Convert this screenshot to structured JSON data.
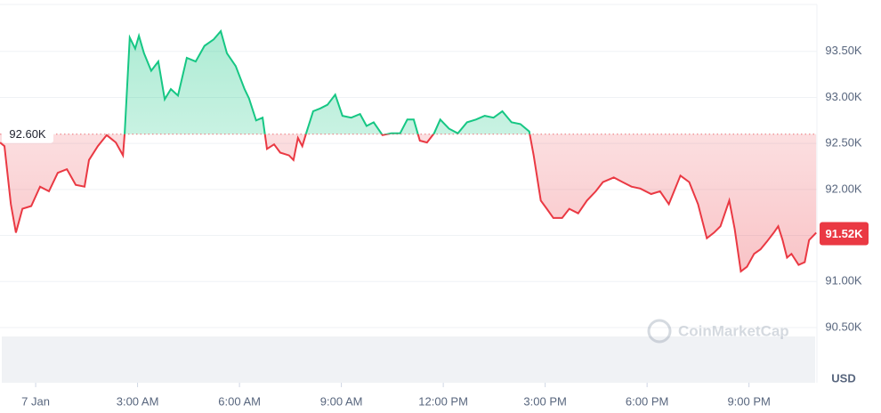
{
  "chart_data": {
    "type": "line",
    "x": [
      -1.05,
      -0.92,
      -0.73,
      -0.58,
      -0.39,
      -0.13,
      0.13,
      0.39,
      0.65,
      0.92,
      1.18,
      1.44,
      1.57,
      1.83,
      2.09,
      2.36,
      2.57,
      2.62,
      2.77,
      2.93,
      3.04,
      3.19,
      3.4,
      3.61,
      3.8,
      3.98,
      4.19,
      4.45,
      4.71,
      4.97,
      5.24,
      5.45,
      5.63,
      5.89,
      6.15,
      6.28,
      6.49,
      6.68,
      6.81,
      7.02,
      7.2,
      7.46,
      7.59,
      7.72,
      7.85,
      7.98,
      8.17,
      8.38,
      8.59,
      8.82,
      9.03,
      9.29,
      9.55,
      9.74,
      9.95,
      10.21,
      10.47,
      10.73,
      10.94,
      11.13,
      11.31,
      11.52,
      11.73,
      11.91,
      12.17,
      12.43,
      12.7,
      12.96,
      13.22,
      13.48,
      13.74,
      14.01,
      14.27,
      14.53,
      14.66,
      14.87,
      15.05,
      15.24,
      15.5,
      15.71,
      15.97,
      16.23,
      16.49,
      16.7,
      17.02,
      17.28,
      17.54,
      17.8,
      18.12,
      18.38,
      18.64,
      18.98,
      19.24,
      19.5,
      19.76,
      19.97,
      20.16,
      20.42,
      20.58,
      20.76,
      20.94,
      21.15,
      21.34,
      21.52,
      21.73,
      21.86,
      21.99,
      22.12,
      22.25,
      22.46,
      22.64,
      22.77,
      22.98
    ],
    "values": [
      92510,
      92470,
      91840,
      91530,
      91790,
      91820,
      92030,
      91980,
      92180,
      92220,
      92050,
      92030,
      92320,
      92470,
      92590,
      92510,
      92370,
      92610,
      93650,
      93530,
      93670,
      93480,
      93290,
      93390,
      92980,
      93090,
      93020,
      93430,
      93390,
      93560,
      93630,
      93720,
      93480,
      93340,
      93090,
      92990,
      92750,
      92780,
      92440,
      92490,
      92400,
      92370,
      92320,
      92560,
      92470,
      92630,
      92850,
      92880,
      92920,
      93030,
      92800,
      92780,
      92820,
      92690,
      92730,
      92590,
      92610,
      92610,
      92760,
      92760,
      92530,
      92510,
      92610,
      92760,
      92660,
      92610,
      92730,
      92760,
      92800,
      92780,
      92850,
      92730,
      92710,
      92630,
      92370,
      91880,
      91790,
      91690,
      91690,
      91790,
      91740,
      91880,
      91980,
      92080,
      92130,
      92080,
      92030,
      92010,
      91950,
      91980,
      91840,
      92150,
      92080,
      91840,
      91470,
      91530,
      91600,
      91880,
      91570,
      91110,
      91160,
      91300,
      91350,
      91430,
      91530,
      91600,
      91450,
      91260,
      91300,
      91180,
      91210,
      91450,
      91530
    ],
    "colors": {
      "above": "#16c784",
      "below": "#ea3943"
    },
    "baseline": {
      "value": 92600,
      "label": "92.60K"
    },
    "last_price": {
      "value": 91520,
      "label": "91.52K"
    },
    "xlim": [
      -1.05,
      23
    ],
    "xticks": [
      {
        "value": 0,
        "label": "7 Jan"
      },
      {
        "value": 3,
        "label": "3:00 AM"
      },
      {
        "value": 6,
        "label": "6:00 AM"
      },
      {
        "value": 9,
        "label": "9:00 AM"
      },
      {
        "value": 12,
        "label": "12:00 PM"
      },
      {
        "value": 15,
        "label": "3:00 PM"
      },
      {
        "value": 18,
        "label": "6:00 PM"
      },
      {
        "value": 21,
        "label": "9:00 PM"
      }
    ],
    "ylim": [
      89900,
      94010
    ],
    "yticks": [
      {
        "value": 90500,
        "label": "90.50K"
      },
      {
        "value": 91000,
        "label": "91.00K"
      },
      {
        "value": 91500,
        "label": "91.50K"
      },
      {
        "value": 92000,
        "label": "92.00K"
      },
      {
        "value": 92500,
        "label": "92.50K"
      },
      {
        "value": 93000,
        "label": "93.00K"
      },
      {
        "value": 93500,
        "label": "93.50K"
      }
    ],
    "y_unit": "USD",
    "watermark": "CoinMarketCap",
    "grid": true
  }
}
